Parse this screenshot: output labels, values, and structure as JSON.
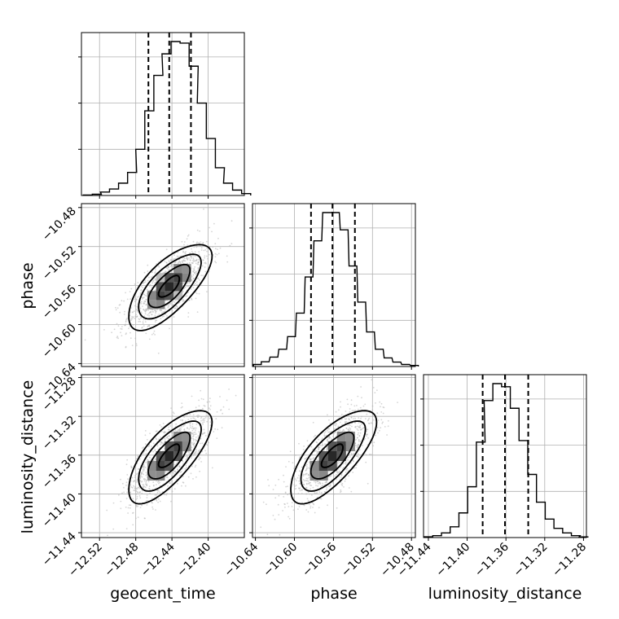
{
  "chart_data": {
    "type": "corner",
    "parameters": [
      {
        "name": "geocent_time",
        "range": [
          -12.54,
          -12.36
        ],
        "ticks": [
          -12.52,
          -12.48,
          -12.44,
          -12.4
        ],
        "tick_labels": [
          "−12.52",
          "−12.48",
          "−12.44",
          "−12.40"
        ],
        "quantiles": [
          -12.466,
          -12.443,
          -12.419
        ],
        "hist_bins": [
          -12.533,
          -12.523,
          -12.514,
          -12.504,
          -12.494,
          -12.484,
          -12.475,
          -12.465,
          -12.455,
          -12.446,
          -12.436,
          -12.426,
          -12.416,
          -12.407,
          -12.397,
          -12.387,
          -12.378,
          -12.368,
          -12.358
        ],
        "hist_counts": [
          0.3,
          0.8,
          2.2,
          4.2,
          8.0,
          15.0,
          30.0,
          55.0,
          78.0,
          92.0,
          100.0,
          99.0,
          84.0,
          60.0,
          37.0,
          18.0,
          8.0,
          3.5,
          1.2
        ],
        "center": -12.443,
        "sigma": 0.023
      },
      {
        "name": "phase",
        "range": [
          -10.643,
          -10.476
        ],
        "ticks": [
          -10.64,
          -10.6,
          -10.56,
          -10.52,
          -10.48
        ],
        "tick_labels": [
          "−10.64",
          "−10.60",
          "−10.56",
          "−10.52",
          "−10.48"
        ],
        "quantiles": [
          -10.583,
          -10.561,
          -10.538
        ],
        "hist_bins": [
          -10.638,
          -10.63,
          -10.621,
          -10.612,
          -10.603,
          -10.594,
          -10.585,
          -10.576,
          -10.567,
          -10.558,
          -10.549,
          -10.54,
          -10.531,
          -10.522,
          -10.513,
          -10.504,
          -10.495,
          -10.486,
          -10.477
        ],
        "hist_counts": [
          1.3,
          3.0,
          6.0,
          11.0,
          19.0,
          34.0,
          57.0,
          80.0,
          98.0,
          98.0,
          87.0,
          64.0,
          41.0,
          22.0,
          11.0,
          5.5,
          2.8,
          1.3,
          0.7
        ],
        "center": -10.561,
        "sigma": 0.022
      },
      {
        "name": "luminosity_distance",
        "range": [
          -11.445,
          -11.277
        ],
        "ticks": [
          -11.44,
          -11.4,
          -11.36,
          -11.32,
          -11.28
        ],
        "tick_labels": [
          "−11.44",
          "−11.40",
          "−11.36",
          "−11.32",
          "−11.28"
        ],
        "quantiles": [
          -11.384,
          -11.361,
          -11.337
        ],
        "hist_bins": [
          -11.44,
          -11.431,
          -11.422,
          -11.413,
          -11.404,
          -11.395,
          -11.386,
          -11.378,
          -11.369,
          -11.36,
          -11.351,
          -11.342,
          -11.333,
          -11.324,
          -11.315,
          -11.306,
          -11.297,
          -11.288,
          -11.28
        ],
        "hist_counts": [
          0.5,
          1.2,
          3.0,
          7.0,
          16.0,
          33.0,
          62.0,
          89.0,
          100.0,
          98.0,
          84.0,
          63.0,
          41.0,
          23.0,
          12.0,
          6.0,
          3.0,
          1.2,
          0.4
        ],
        "center": -11.361,
        "sigma": 0.024
      }
    ],
    "correlations": {
      "phase|geocent_time": 0.7,
      "luminosity_distance|geocent_time": 0.72,
      "luminosity_distance|phase": 0.72
    },
    "contour_levels": [
      "0.5 sigma",
      "1 sigma",
      "1.5 sigma",
      "2 sigma"
    ],
    "quantiles_shown": [
      0.16,
      0.5,
      0.84
    ],
    "grid": true,
    "colors": {
      "hist": "#000000",
      "contour": "#000000",
      "scatter": "#b4b4b4",
      "grid": "#b0b0b0"
    }
  }
}
